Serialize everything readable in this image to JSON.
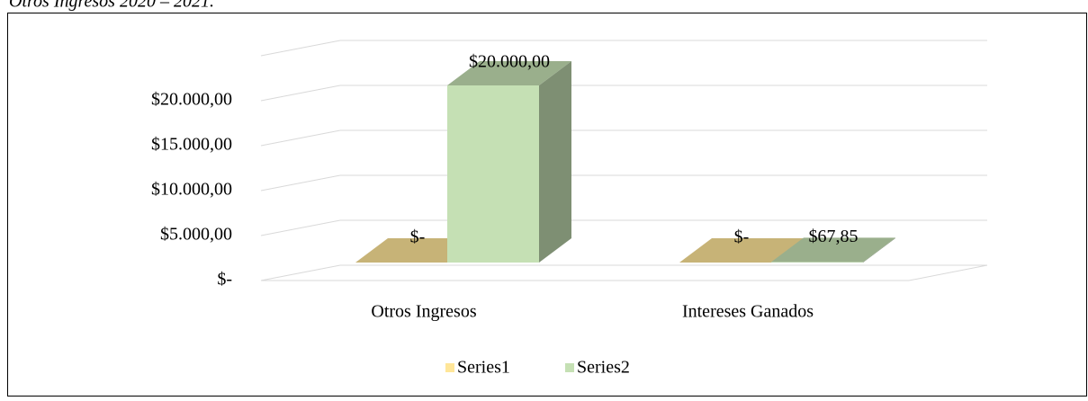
{
  "chart_data": {
    "type": "bar3d",
    "title": "Otros Ingresos 2020 – 2021.",
    "categories": [
      "Otros Ingresos",
      "Intereses Ganados"
    ],
    "series": [
      {
        "name": "Series1",
        "color": "#ffe699",
        "values": [
          0,
          0
        ],
        "value_labels": [
          "$-",
          "$-"
        ]
      },
      {
        "name": "Series2",
        "color": "#c5e0b4",
        "values": [
          20000,
          67.85
        ],
        "value_labels": [
          "$20.000,00",
          "$67,85"
        ]
      }
    ],
    "ylim": [
      0,
      25000
    ],
    "yticks": [
      {
        "value": 0,
        "label": "$-"
      },
      {
        "value": 5000,
        "label": "$5.000,00"
      },
      {
        "value": 10000,
        "label": "$10.000,00"
      },
      {
        "value": 15000,
        "label": "$15.000,00"
      },
      {
        "value": 20000,
        "label": "$20.000,00"
      }
    ],
    "grid": true,
    "legend": "bottom"
  }
}
